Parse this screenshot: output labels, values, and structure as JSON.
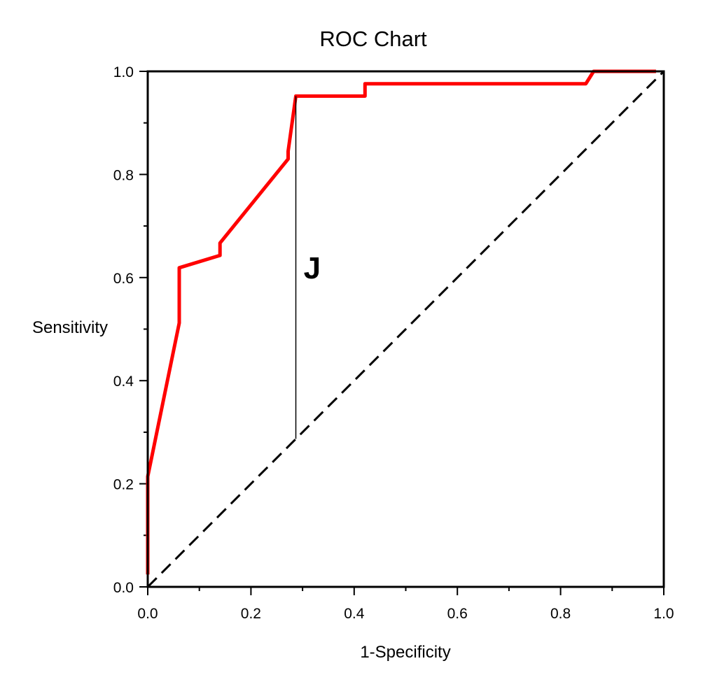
{
  "chart_data": {
    "type": "line",
    "title": "ROC Chart",
    "xlabel": "1-Specificity",
    "ylabel": "Sensitivity",
    "xlim": [
      0,
      1
    ],
    "ylim": [
      0,
      1
    ],
    "x_ticks": [
      "0.0",
      "0.2",
      "0.4",
      "0.6",
      "0.8",
      "1.0"
    ],
    "y_ticks": [
      "0.0",
      "0.2",
      "0.4",
      "0.6",
      "0.8",
      "1.0"
    ],
    "x_tick_values": [
      0,
      0.2,
      0.4,
      0.6,
      0.8,
      1.0
    ],
    "y_tick_values": [
      0,
      0.2,
      0.4,
      0.6,
      0.8,
      1.0
    ],
    "x_minor_step": 0.1,
    "y_minor_step": 0.1,
    "grid": false,
    "series": [
      {
        "color": "#ff0000",
        "style": "solid",
        "points": [
          [
            0.0,
            0.024
          ],
          [
            0.0,
            0.214
          ],
          [
            0.061,
            0.512
          ],
          [
            0.061,
            0.619
          ],
          [
            0.14,
            0.643
          ],
          [
            0.14,
            0.667
          ],
          [
            0.272,
            0.83
          ],
          [
            0.272,
            0.845
          ],
          [
            0.287,
            0.952
          ],
          [
            0.421,
            0.952
          ],
          [
            0.421,
            0.976
          ],
          [
            0.849,
            0.976
          ],
          [
            0.864,
            1.0
          ],
          [
            0.985,
            1.0
          ]
        ]
      },
      {
        "color": "#000000",
        "style": "dashed",
        "points": [
          [
            0.0,
            0.0
          ],
          [
            1.0,
            1.0
          ]
        ]
      }
    ],
    "annotation": {
      "label": "J",
      "x": 0.287,
      "y_from": 0.287,
      "y_to": 0.952,
      "label_x": 0.302,
      "label_y": 0.62
    }
  }
}
